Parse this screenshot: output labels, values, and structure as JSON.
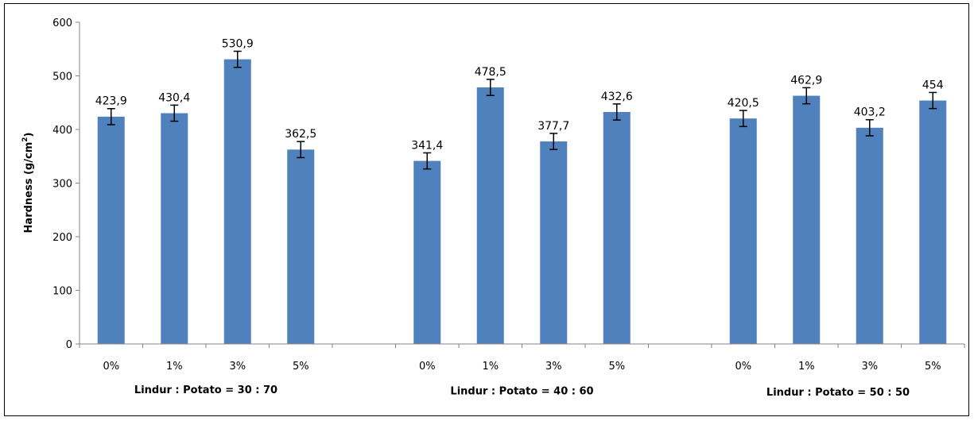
{
  "chart_data": {
    "type": "bar",
    "ylabel": "Hardness (g/cm²)",
    "ylabel_parts": {
      "text": "Hardness (g/cm",
      "sup": "2",
      "close": ")"
    },
    "ylim": [
      0,
      600
    ],
    "yticks": [
      "0",
      "100",
      "200",
      "300",
      "400",
      "500",
      "600"
    ],
    "grid": false,
    "legend": "none",
    "bar_color": "#4f81bd",
    "groups": [
      {
        "label": "Lindur : Potato = 30 : 70",
        "categories": [
          "0%",
          "1%",
          "3%",
          "5%"
        ],
        "values": [
          423.9,
          430.4,
          530.9,
          362.5
        ],
        "value_labels": [
          "423,9",
          "430,4",
          "530,9",
          "362,5"
        ],
        "errors": [
          15,
          15,
          15,
          15
        ]
      },
      {
        "label": "Lindur : Potato = 40 : 60",
        "categories": [
          "0%",
          "1%",
          "3%",
          "5%"
        ],
        "values": [
          341.4,
          478.5,
          377.7,
          432.6
        ],
        "value_labels": [
          "341,4",
          "478,5",
          "377,7",
          "432,6"
        ],
        "errors": [
          15,
          15,
          15,
          15
        ]
      },
      {
        "label": "Lindur : Potato = 50 : 50",
        "categories": [
          "0%",
          "1%",
          "3%",
          "5%"
        ],
        "values": [
          420.5,
          462.9,
          403.2,
          454
        ],
        "value_labels": [
          "420,5",
          "462,9",
          "403,2",
          "454"
        ],
        "errors": [
          15,
          15,
          15,
          15
        ]
      }
    ]
  }
}
